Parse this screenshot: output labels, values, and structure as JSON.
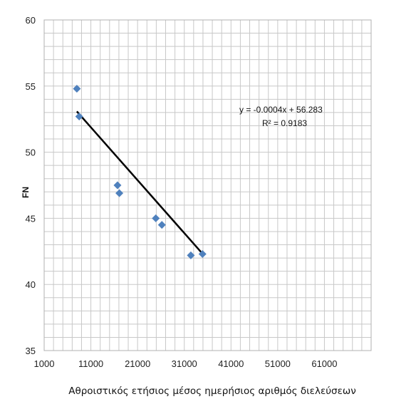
{
  "chart_data": {
    "type": "scatter",
    "xlabel": "Αθροιστικός ετήσιος μέσος ημερήσιος αριθμός διελεύσεων",
    "ylabel": "FN",
    "xlim": [
      1000,
      71000
    ],
    "ylim": [
      35,
      60
    ],
    "x_ticks": [
      1000,
      11000,
      21000,
      31000,
      41000,
      51000,
      61000
    ],
    "y_ticks": [
      35,
      40,
      45,
      50,
      55,
      60
    ],
    "grid": true,
    "points": [
      {
        "x": 8000,
        "y": 54.8
      },
      {
        "x": 8500,
        "y": 52.7
      },
      {
        "x": 16700,
        "y": 47.5
      },
      {
        "x": 17100,
        "y": 46.9
      },
      {
        "x": 24900,
        "y": 45.0
      },
      {
        "x": 26200,
        "y": 44.5
      },
      {
        "x": 32400,
        "y": 42.2
      },
      {
        "x": 34900,
        "y": 42.3
      }
    ],
    "trendline": {
      "x_range": [
        8000,
        35000
      ],
      "slope": -0.0004,
      "intercept": 56.283,
      "equation": "y = -0.0004x + 56.283",
      "r2_label": "R² = 0.9183"
    },
    "colors": {
      "marker": "#4f81bd",
      "trendline": "#000000",
      "grid": "#c8c8c8"
    }
  }
}
